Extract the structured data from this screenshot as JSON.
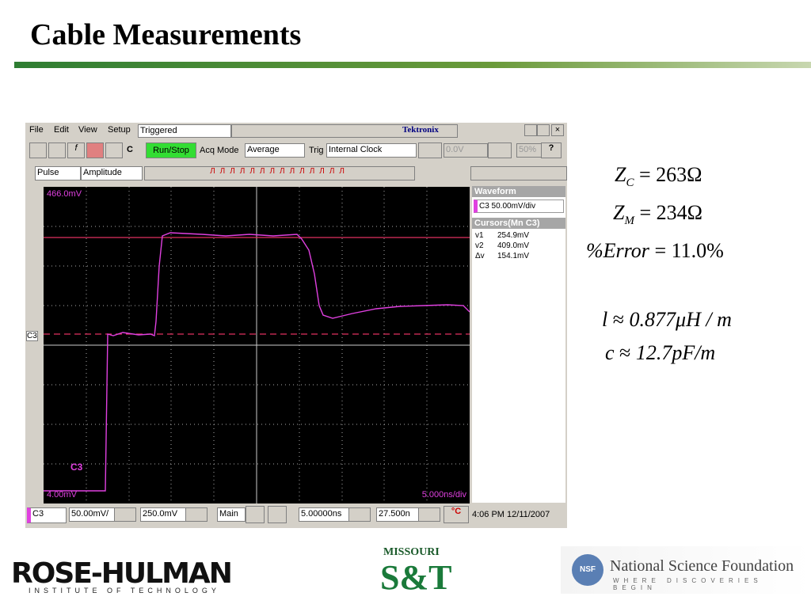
{
  "title": "Cable Measurements",
  "scope": {
    "menu": [
      "File",
      "Edit",
      "View",
      "Setup"
    ],
    "status": "Triggered",
    "brand": "Tektronix",
    "toolbar": {
      "c_button": "C",
      "run_stop": "Run/Stop",
      "acq_mode_label": "Acq Mode",
      "acq_mode": "Average",
      "trig_label": "Trig",
      "trig": "Internal Clock",
      "level": "0.0V",
      "zoom": "50%"
    },
    "toolbar2": {
      "measure_type": "Pulse",
      "measure": "Amplitude"
    },
    "screen": {
      "top_label": "466.0mV",
      "bottom_label": "4.00mV",
      "channel_marker": "C3",
      "trace_label": "C3",
      "timebase": "5.000ns/div"
    },
    "panel": {
      "waveform_header": "Waveform",
      "waveform_item": "C3 50.00mV/div",
      "cursors_header": "Cursors(Mn C3)",
      "cursors": [
        [
          "v1",
          "254.9mV"
        ],
        [
          "v2",
          "409.0mV"
        ],
        [
          "Δv",
          "154.1mV"
        ]
      ]
    },
    "bottom": {
      "channel": "C3",
      "scale": "50.00mV/",
      "offset": "250.0mV",
      "timebase_mode": "Main",
      "horizontal": "5.00000ns",
      "position": "27.500n",
      "clock": "4:06 PM 12/11/2007"
    }
  },
  "equations": [
    {
      "lhs": "Z",
      "sub": "C",
      "rel": "=",
      "rhs": "263Ω"
    },
    {
      "lhs": "Z",
      "sub": "M",
      "rel": "=",
      "rhs": "234Ω"
    },
    {
      "lhs": "%Error",
      "rel": "=",
      "rhs": "11.0%"
    },
    {
      "lhs": "l",
      "rel": "≈",
      "rhs": "0.877μH / m"
    },
    {
      "lhs": "c",
      "rel": "≈",
      "rhs": "12.7pF/m"
    }
  ],
  "logos": {
    "rose": "ROSE-HULMAN",
    "rose_sub": "INSTITUTE OF TECHNOLOGY",
    "mst_top": "MISSOURI",
    "mst": "S&T",
    "nsf_badge": "NSF",
    "nsf": "National Science Foundation",
    "nsf_sub": "WHERE DISCOVERIES BEGIN"
  }
}
